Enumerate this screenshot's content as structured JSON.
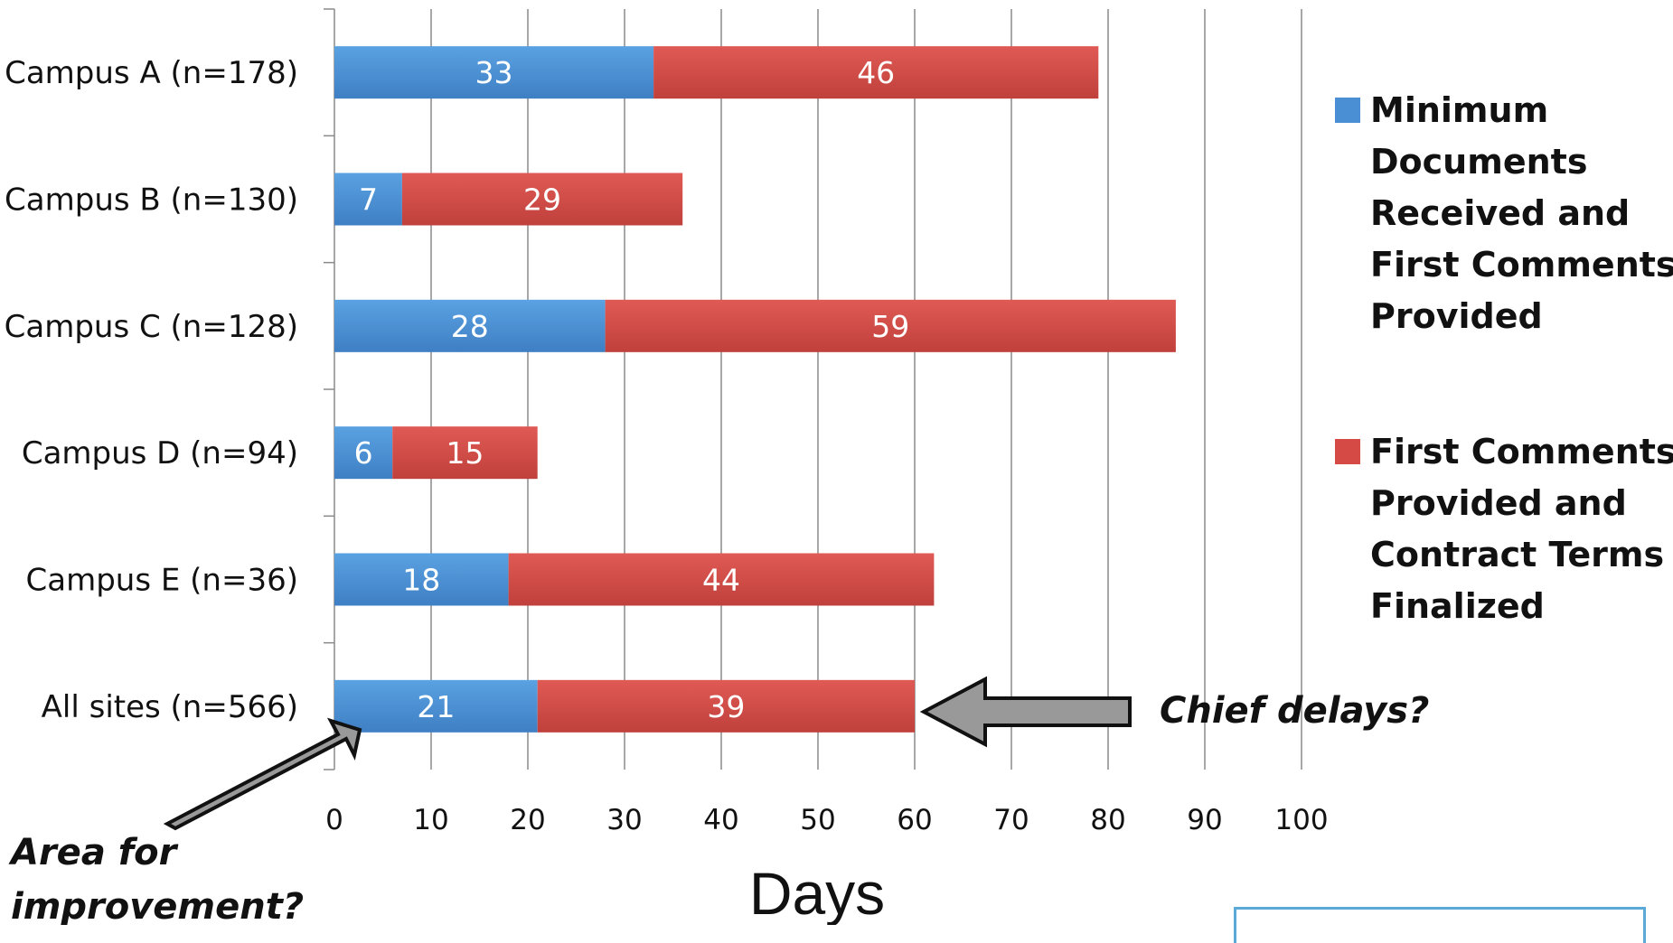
{
  "chart_data": {
    "type": "bar",
    "orientation": "horizontal",
    "stacked": true,
    "categories": [
      "Campus A (n=178)",
      "Campus B (n=130)",
      "Campus C (n=128)",
      "Campus D (n=94)",
      "Campus E (n=36)",
      "All sites (n=566)"
    ],
    "series": [
      {
        "name": "Minimum Documents Received and First Comments Provided",
        "color": "#4a8fd4",
        "values": [
          33,
          7,
          28,
          6,
          18,
          21
        ]
      },
      {
        "name": "First Comments Provided and Contract Terms Finalized",
        "color": "#d64a45",
        "values": [
          46,
          29,
          59,
          15,
          44,
          39
        ]
      }
    ],
    "legend_lines": [
      [
        "Minimum",
        "Documents",
        "Received and",
        "First Comments",
        "Provided"
      ],
      [
        "First Comments",
        "Provided and",
        "Contract Terms",
        "Finalized"
      ]
    ],
    "xlabel": "Days",
    "xlim": [
      0,
      100
    ],
    "xticks": [
      0,
      10,
      20,
      30,
      40,
      50,
      60,
      70,
      80,
      90,
      100
    ],
    "grid": "vertical",
    "legend_position": "right",
    "annotations": {
      "chief": "Chief delays?",
      "area_line1": "Area for",
      "area_line2": "improvement?"
    }
  }
}
